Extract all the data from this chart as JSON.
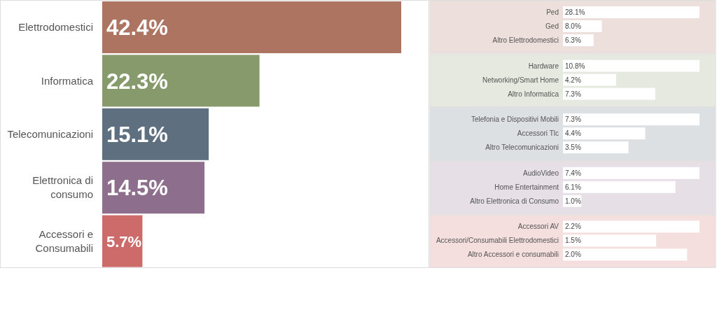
{
  "chart_data": [
    {
      "type": "bar",
      "orientation": "horizontal",
      "categories": [
        "Elettrodomestici",
        "Informatica",
        "Telecomunicazioni",
        "Elettronica di consumo",
        "Accessori e Consumabili"
      ],
      "values": [
        42.4,
        22.3,
        15.1,
        14.5,
        5.7
      ],
      "colors": [
        "#ad7462",
        "#879a6c",
        "#5e7080",
        "#8d6e8c",
        "#cd6b6a"
      ],
      "value_labels": [
        "42.4%",
        "22.3%",
        "15.1%",
        "14.5%",
        "5.7%"
      ]
    },
    {
      "type": "bar",
      "orientation": "horizontal",
      "categories": [
        "Ped",
        "Ged",
        "Altro Elettrodomestici"
      ],
      "values": [
        28.1,
        8.0,
        6.3
      ],
      "color": "#ffffff",
      "value_labels": [
        "28.1%",
        "8.0%",
        "6.3%"
      ]
    },
    {
      "type": "bar",
      "orientation": "horizontal",
      "categories": [
        "Hardware",
        "Networking/Smart Home",
        "Altro Informatica"
      ],
      "values": [
        10.8,
        4.2,
        7.3
      ],
      "color": "#ffffff",
      "value_labels": [
        "10.8%",
        "4.2%",
        "7.3%"
      ]
    },
    {
      "type": "bar",
      "orientation": "horizontal",
      "categories": [
        "Telefonia e Dispositivi Mobili",
        "Accessori Tlc",
        "Altro Telecomunicazioni"
      ],
      "values": [
        7.3,
        4.4,
        3.5
      ],
      "color": "#ffffff",
      "value_labels": [
        "7.3%",
        "4.4%",
        "3.5%"
      ]
    },
    {
      "type": "bar",
      "orientation": "horizontal",
      "categories": [
        "AudioVideo",
        "Home Entertainment",
        "Altro Elettronica di Consumo"
      ],
      "values": [
        7.4,
        6.1,
        1.0
      ],
      "color": "#ffffff",
      "value_labels": [
        "7.4%",
        "6.1%",
        "1.0%"
      ]
    },
    {
      "type": "bar",
      "orientation": "horizontal",
      "categories": [
        "Accessori AV",
        "Accessori/Consumabili Elettrodomestici",
        "Altro Accessori e consumabili"
      ],
      "values": [
        2.2,
        1.5,
        2.0
      ],
      "color": "#ffffff",
      "value_labels": [
        "2.2%",
        "1.5%",
        "2.0%"
      ]
    }
  ]
}
